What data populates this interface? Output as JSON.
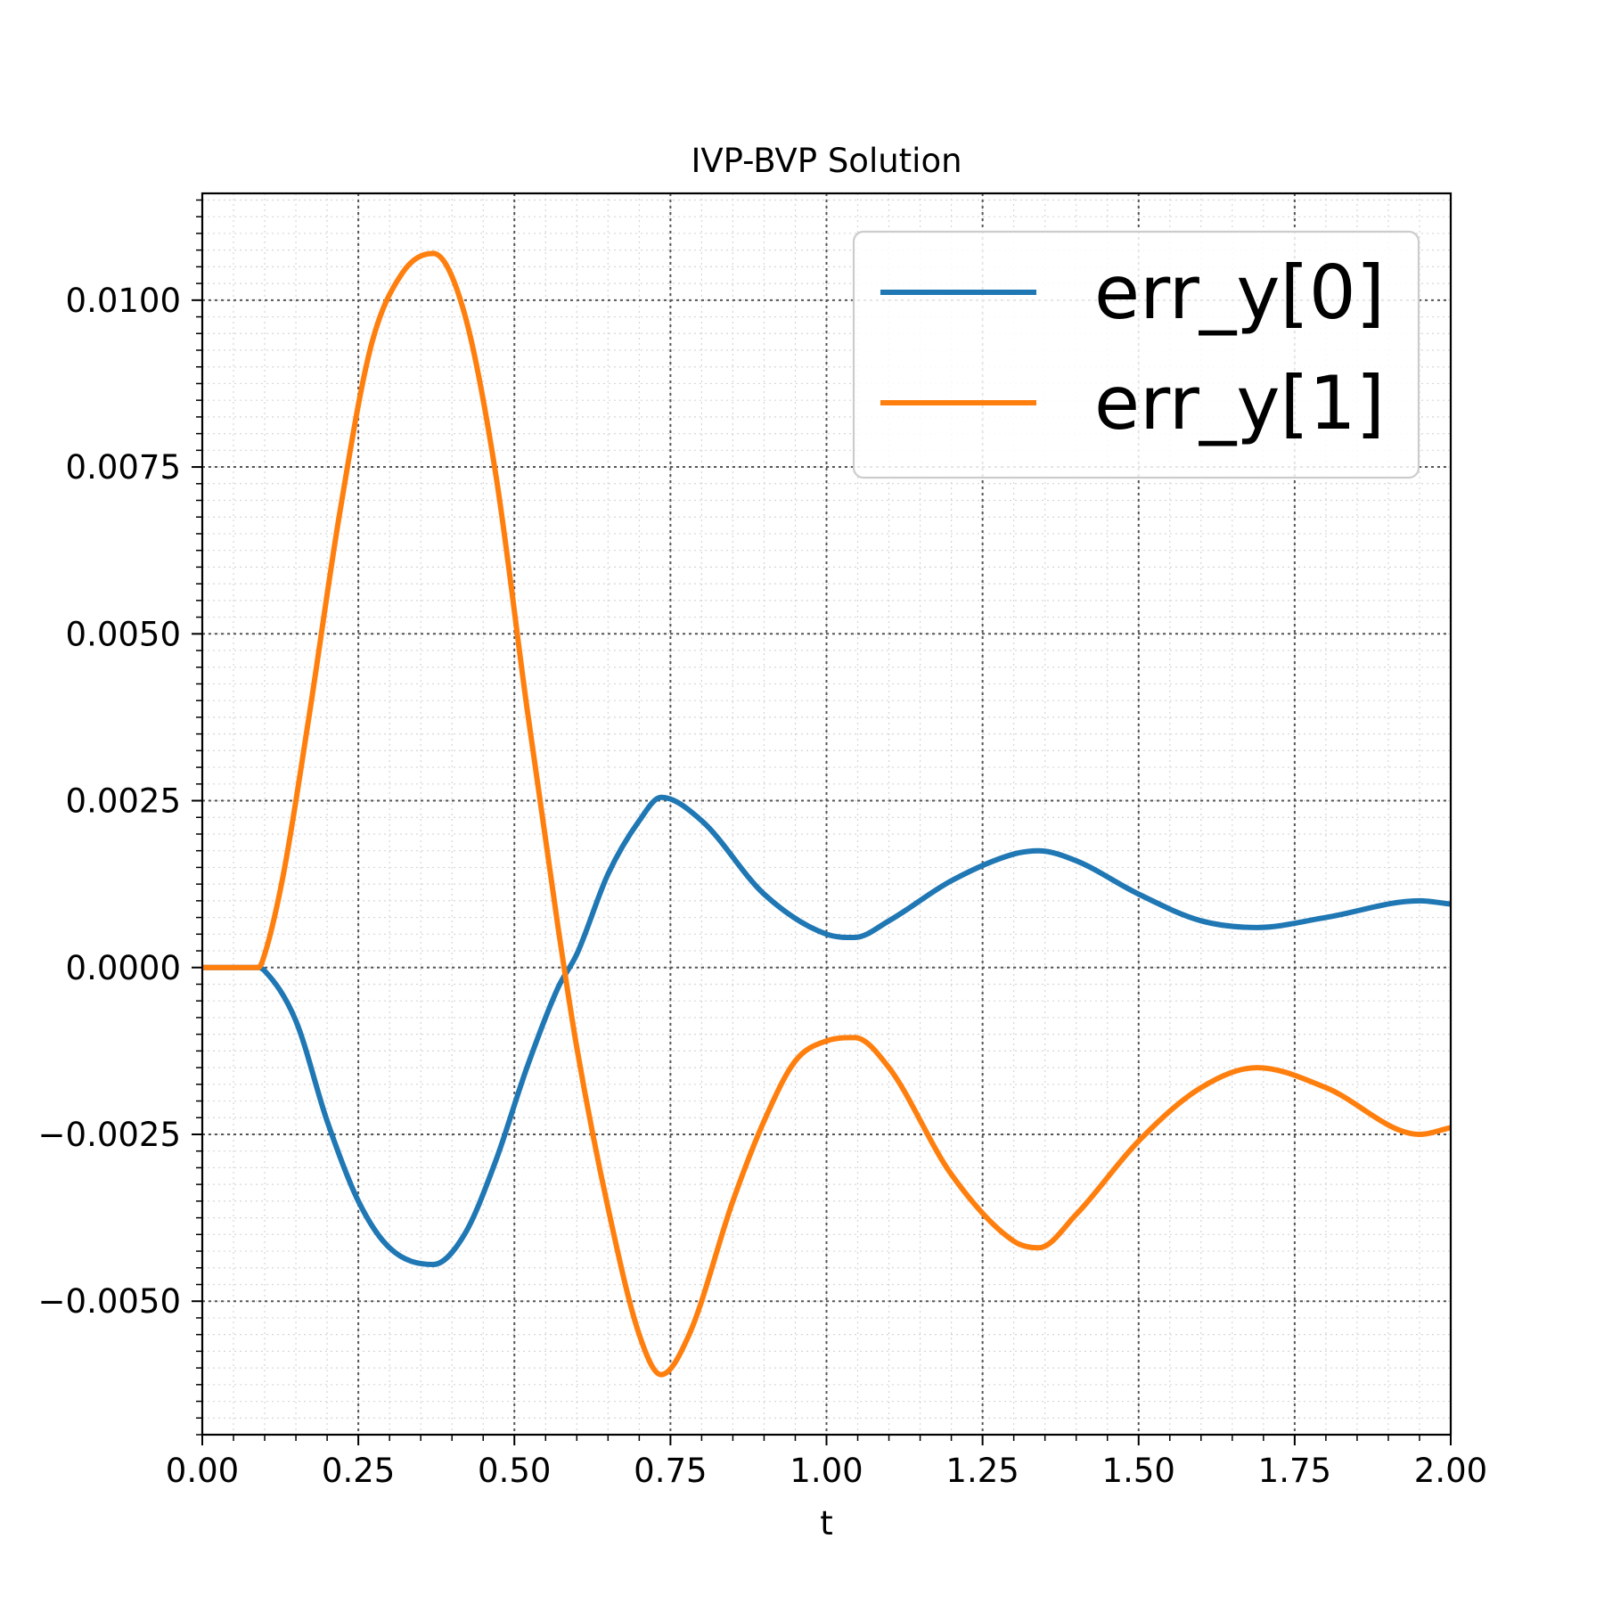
{
  "chart_data": {
    "type": "line",
    "title": "IVP-BVP Solution",
    "xlabel": "t",
    "ylabel": "",
    "xlim": [
      0.0,
      2.0
    ],
    "ylim": [
      -0.007,
      0.0116
    ],
    "xticks": [
      0.0,
      0.25,
      0.5,
      0.75,
      1.0,
      1.25,
      1.5,
      1.75,
      2.0
    ],
    "xtick_labels": [
      "0.00",
      "0.25",
      "0.50",
      "0.75",
      "1.00",
      "1.25",
      "1.50",
      "1.75",
      "2.00"
    ],
    "yticks": [
      -0.005,
      -0.0025,
      0.0,
      0.0025,
      0.005,
      0.0075,
      0.01
    ],
    "ytick_labels": [
      "−0.0050",
      "−0.0025",
      "0.0000",
      "0.0025",
      "0.0050",
      "0.0075",
      "0.0100"
    ],
    "grid": {
      "major": "dotted",
      "minor": "dotted-light"
    },
    "legend": {
      "position": "upper-right"
    },
    "series": [
      {
        "name": "err_y[0]",
        "color": "#1f77b4",
        "x": [
          0.0,
          0.09,
          0.1,
          0.15,
          0.2,
          0.25,
          0.3,
          0.37,
          0.42,
          0.47,
          0.52,
          0.57,
          0.6,
          0.65,
          0.7,
          0.735,
          0.8,
          0.9,
          1.0,
          1.045,
          1.1,
          1.2,
          1.3,
          1.34,
          1.4,
          1.5,
          1.6,
          1.69,
          1.8,
          1.95,
          2.0
        ],
        "y": [
          0.0,
          0.0,
          -5e-05,
          -0.0008,
          -0.0023,
          -0.0035,
          -0.0042,
          -0.00445,
          -0.004,
          -0.0029,
          -0.0015,
          -0.0003,
          0.0002,
          0.0014,
          0.0022,
          0.00255,
          0.0022,
          0.0011,
          0.0005,
          0.00045,
          0.0007,
          0.0013,
          0.0017,
          0.00175,
          0.0016,
          0.0011,
          0.0007,
          0.0006,
          0.00075,
          0.001,
          0.00095
        ]
      },
      {
        "name": "err_y[1]",
        "color": "#ff7f0e",
        "x": [
          0.0,
          0.09,
          0.1,
          0.13,
          0.17,
          0.22,
          0.27,
          0.32,
          0.37,
          0.42,
          0.47,
          0.52,
          0.57,
          0.6,
          0.65,
          0.7,
          0.735,
          0.78,
          0.85,
          0.9,
          0.95,
          1.0,
          1.045,
          1.1,
          1.2,
          1.3,
          1.34,
          1.4,
          1.5,
          1.6,
          1.69,
          1.8,
          1.95,
          2.0
        ],
        "y": [
          0.0,
          0.0,
          0.0002,
          0.0014,
          0.0037,
          0.0068,
          0.0093,
          0.0104,
          0.0107,
          0.0098,
          0.0074,
          0.0039,
          0.0006,
          -0.0012,
          -0.0036,
          -0.0055,
          -0.0061,
          -0.0055,
          -0.0035,
          -0.0023,
          -0.0014,
          -0.0011,
          -0.00105,
          -0.0015,
          -0.0031,
          -0.0041,
          -0.0042,
          -0.0037,
          -0.0026,
          -0.0018,
          -0.0015,
          -0.0018,
          -0.0025,
          -0.0024
        ]
      }
    ]
  }
}
